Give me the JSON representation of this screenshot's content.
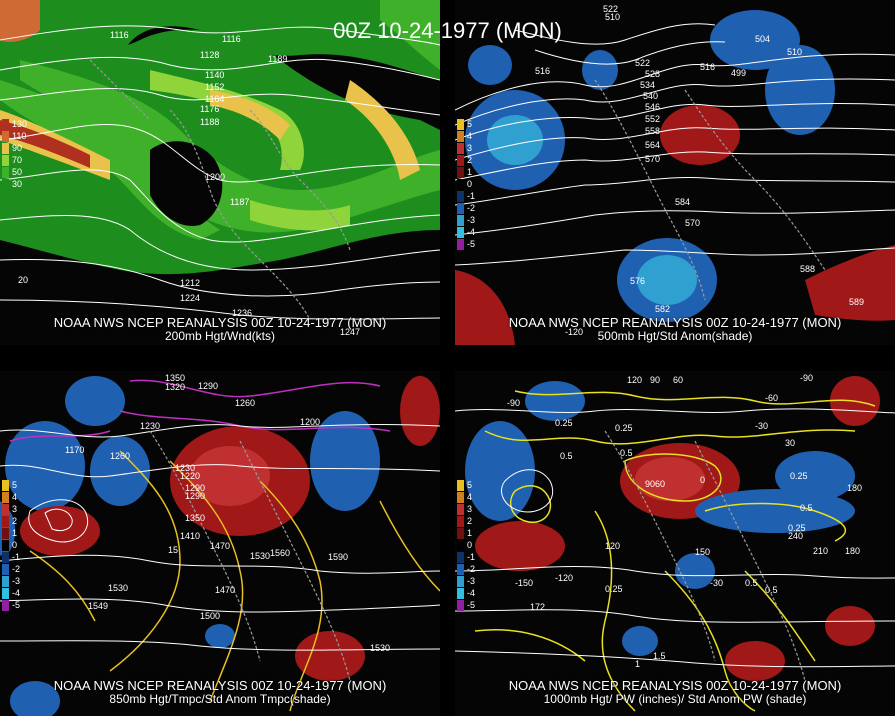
{
  "main_title": "00Z 10-24-1977 (MON)",
  "panels": [
    {
      "caption1": "NOAA NWS NCEP REANALYSIS 00Z 10-24-1977 (MON)",
      "caption2": "200mb Hgt/Wnd(kts)",
      "legend": [
        {
          "value": "130",
          "color": "#b03020"
        },
        {
          "value": "110",
          "color": "#d06a35"
        },
        {
          "value": "90",
          "color": "#e8c24a"
        },
        {
          "value": "70",
          "color": "#8fd43a"
        },
        {
          "value": "50",
          "color": "#3fb02a"
        },
        {
          "value": "30",
          "color": "#1d8e1d"
        }
      ],
      "labels": [
        "1116",
        "1116",
        "1128",
        "1140",
        "1152",
        "1164",
        "1176",
        "1188",
        "1200",
        "1212",
        "1224",
        "1236",
        "20",
        "1187",
        "1189",
        "1247"
      ]
    },
    {
      "caption1": "NOAA NWS NCEP REANALYSIS 00Z 10-24-1977 (MON)",
      "caption2": "500mb Hgt/Std Anom(shade)",
      "legend": [
        {
          "value": "5",
          "color": "#e8c020"
        },
        {
          "value": "4",
          "color": "#d08020"
        },
        {
          "value": "3",
          "color": "#c03030"
        },
        {
          "value": "2",
          "color": "#a01818"
        },
        {
          "value": "1",
          "color": "#701010"
        },
        {
          "value": "0",
          "color": "#000000"
        },
        {
          "value": "-1",
          "color": "#103068"
        },
        {
          "value": "-2",
          "color": "#2060b0"
        },
        {
          "value": "-3",
          "color": "#30a0d0"
        },
        {
          "value": "-4",
          "color": "#30c0e0"
        },
        {
          "value": "-5",
          "color": "#9020a0"
        }
      ],
      "labels": [
        "522",
        "510",
        "504",
        "516",
        "516",
        "522",
        "528",
        "534",
        "540",
        "546",
        "552",
        "558",
        "564",
        "570",
        "570",
        "576",
        "582",
        "588",
        "499",
        "510",
        "584",
        "589",
        "-120"
      ]
    },
    {
      "caption1": "NOAA NWS NCEP REANALYSIS 00Z 10-24-1977 (MON)",
      "caption2": "850mb Hgt/Tmpc/Std Anom Tmpc(shade)",
      "legend": [
        {
          "value": "5",
          "color": "#e8c020"
        },
        {
          "value": "4",
          "color": "#d08020"
        },
        {
          "value": "3",
          "color": "#c03030"
        },
        {
          "value": "2",
          "color": "#a01818"
        },
        {
          "value": "1",
          "color": "#701010"
        },
        {
          "value": "0",
          "color": "#000000"
        },
        {
          "value": "-1",
          "color": "#103068"
        },
        {
          "value": "-2",
          "color": "#2060b0"
        },
        {
          "value": "-3",
          "color": "#30a0d0"
        },
        {
          "value": "-4",
          "color": "#30c0e0"
        },
        {
          "value": "-5",
          "color": "#9020a0"
        }
      ],
      "labels": [
        "1350",
        "1320",
        "1290",
        "1260",
        "1230",
        "1200",
        "1170",
        "1260",
        "1230",
        "1290",
        "1350",
        "1410",
        "1470",
        "1530",
        "1560",
        "1590",
        "1530",
        "1470",
        "1500",
        "1530",
        "15",
        "1549",
        "1220",
        "1290"
      ]
    },
    {
      "caption1": "NOAA NWS NCEP REANALYSIS 00Z 10-24-1977 (MON)",
      "caption2": "1000mb Hgt/ PW (inches)/ Std Anom PW (shade)",
      "legend": [
        {
          "value": "5",
          "color": "#e8c020"
        },
        {
          "value": "4",
          "color": "#d08020"
        },
        {
          "value": "3",
          "color": "#c03030"
        },
        {
          "value": "2",
          "color": "#a01818"
        },
        {
          "value": "1",
          "color": "#701010"
        },
        {
          "value": "0",
          "color": "#000000"
        },
        {
          "value": "-1",
          "color": "#103068"
        },
        {
          "value": "-2",
          "color": "#2060b0"
        },
        {
          "value": "-3",
          "color": "#30a0d0"
        },
        {
          "value": "-4",
          "color": "#30c0e0"
        },
        {
          "value": "-5",
          "color": "#9020a0"
        }
      ],
      "labels": [
        "-90",
        "120",
        "90",
        "60",
        "-90",
        "-60",
        "-30",
        "0",
        "30",
        "0.25",
        "0.5",
        "0.25",
        "0.5",
        "0.25",
        "0.5",
        "0.25",
        "9060",
        "-150",
        "-120",
        "120",
        "150",
        "180",
        "210",
        "180",
        "240",
        "-30",
        "0.5",
        "1.5",
        "0.25",
        "0.5",
        "1",
        "172"
      ]
    }
  ]
}
